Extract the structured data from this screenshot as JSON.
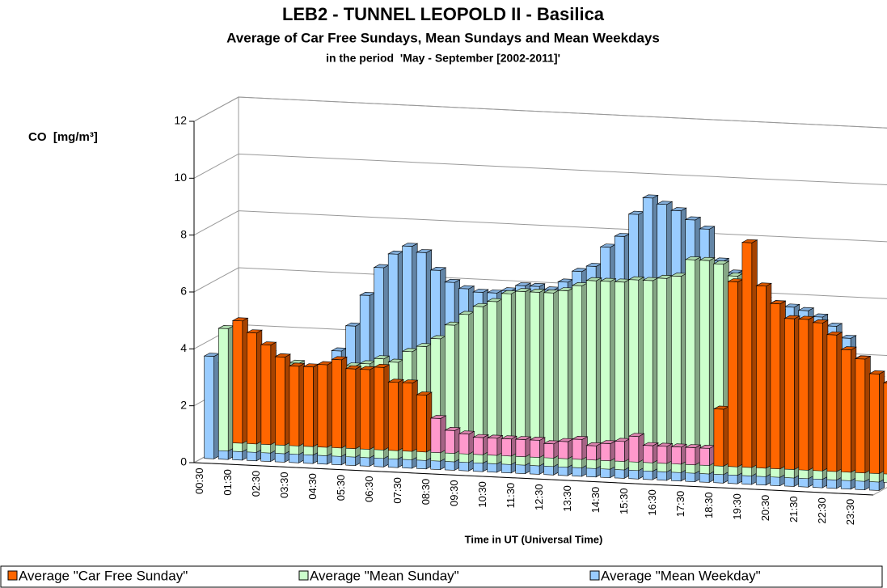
{
  "chart_data": {
    "type": "bar3d",
    "title": "LEB2 - TUNNEL LEOPOLD II - Basilica",
    "subtitle": "Average of Car Free Sundays, Mean Sundays and Mean Weekdays",
    "subtitle2": "in the period  'May - September [2002-2011]'",
    "y_label": "CO  [mg/m³]",
    "x_label": "Time in UT (Universal Time)",
    "categories": [
      "00:30",
      null,
      "01:30",
      null,
      "02:30",
      null,
      "03:30",
      null,
      "04:30",
      null,
      "05:30",
      null,
      "06:30",
      null,
      "07:30",
      null,
      "08:30",
      null,
      "09:30",
      null,
      "10:30",
      null,
      "11:30",
      null,
      "12:30",
      null,
      "13:30",
      null,
      "14:30",
      null,
      "15:30",
      null,
      "16:30",
      null,
      "17:30",
      null,
      "18:30",
      null,
      "19:30",
      null,
      "20:30",
      null,
      "21:30",
      null,
      "22:30",
      null,
      "23:30",
      null
    ],
    "series": [
      {
        "name": "Average \"Car Free Sunday\"",
        "color": "#ff6600",
        "point_colors": [
          "#ff6600",
          "#ff6600",
          "#ff6600",
          "#ff6600",
          "#ff6600",
          "#ff6600",
          "#ff6600",
          "#ff6600",
          "#ff6600",
          "#ff6600",
          "#ff6600",
          "#ff6600",
          "#ff6600",
          "#ff6600",
          "#ff99cc",
          "#ff99cc",
          "#ff99cc",
          "#ff99cc",
          "#ff99cc",
          "#ff99cc",
          "#ff99cc",
          "#ff99cc",
          "#ff99cc",
          "#ff99cc",
          "#ff99cc",
          "#ff99cc",
          "#ff99cc",
          "#ff99cc",
          "#ff99cc",
          "#ff99cc",
          "#ff99cc",
          "#ff99cc",
          "#ff99cc",
          "#ff99cc",
          "#ff6600",
          "#ff6600",
          "#ff6600",
          "#ff6600",
          "#ff6600",
          "#ff6600",
          "#ff6600",
          "#ff6600",
          "#ff6600",
          "#ff6600",
          "#ff6600",
          "#ff6600",
          "#ff6600",
          "#ff6600"
        ],
        "values": [
          4.3,
          3.9,
          3.5,
          3.1,
          2.8,
          2.8,
          2.9,
          3.1,
          2.8,
          2.8,
          2.9,
          2.4,
          2.4,
          2.0,
          1.2,
          0.8,
          0.7,
          0.6,
          0.6,
          0.6,
          0.6,
          0.6,
          0.5,
          0.6,
          0.7,
          0.5,
          0.6,
          0.7,
          0.9,
          0.6,
          0.6,
          0.6,
          0.6,
          0.6,
          2.0,
          6.5,
          7.9,
          6.4,
          5.8,
          5.3,
          5.3,
          5.2,
          4.8,
          4.3,
          4.0,
          3.5,
          3.2,
          2.5
        ]
      },
      {
        "name": "Average \"Mean Sunday\"",
        "color": "#ccffcc",
        "values": [
          4.3,
          4.5,
          3.7,
          3.5,
          3.4,
          3.2,
          3.0,
          3.1,
          3.0,
          3.2,
          3.3,
          3.5,
          3.4,
          3.8,
          4.0,
          4.3,
          4.8,
          5.2,
          5.5,
          5.7,
          6.0,
          6.1,
          6.1,
          6.1,
          6.2,
          6.4,
          6.6,
          6.6,
          6.6,
          6.7,
          6.7,
          6.8,
          6.9,
          7.5,
          7.5,
          7.4,
          7.0,
          6.4,
          6.1,
          5.8,
          5.5,
          5.3,
          5.1,
          4.8,
          4.2,
          3.7,
          3.3,
          3.0
        ]
      },
      {
        "name": "Average \"Mean Weekday\"",
        "color": "#99ccff",
        "values": [
          3.6,
          3.4,
          3.2,
          3.1,
          3.0,
          2.9,
          2.9,
          2.9,
          3.0,
          4.0,
          4.9,
          6.0,
          7.0,
          7.5,
          7.8,
          7.6,
          7.0,
          6.6,
          6.4,
          6.3,
          6.3,
          6.4,
          6.6,
          6.6,
          6.5,
          6.8,
          7.2,
          7.4,
          8.1,
          8.5,
          9.3,
          9.9,
          9.7,
          9.5,
          9.2,
          8.9,
          7.8,
          7.4,
          6.8,
          6.5,
          6.4,
          6.3,
          6.2,
          6.0,
          5.7,
          5.3,
          4.6,
          3.9
        ]
      }
    ],
    "ylim": [
      0,
      12
    ],
    "yticks": [
      0,
      2,
      4,
      6,
      8,
      10,
      12
    ],
    "grid": true,
    "legend": "bottom"
  }
}
